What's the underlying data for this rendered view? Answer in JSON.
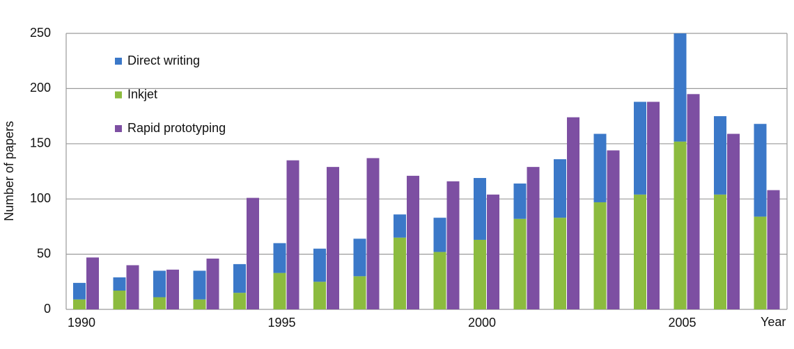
{
  "chart_data": {
    "type": "bar",
    "categories": [
      "1990",
      null,
      null,
      null,
      null,
      "1995",
      null,
      null,
      null,
      null,
      "2000",
      null,
      null,
      null,
      null,
      "2005",
      null,
      null
    ],
    "x_label": "Year",
    "y_label": "Number of papers",
    "series": [
      {
        "name": "Direct writing",
        "color": "#3b78c8",
        "stack": 0,
        "values": [
          15,
          12,
          24,
          26,
          26,
          27,
          30,
          34,
          21,
          31,
          56,
          32,
          53,
          62,
          84,
          98,
          71,
          84
        ]
      },
      {
        "name": "Inkjet",
        "color": "#8cbb3f",
        "stack": 0,
        "values": [
          9,
          17,
          11,
          9,
          15,
          33,
          25,
          30,
          65,
          52,
          63,
          82,
          83,
          97,
          104,
          152,
          104,
          84
        ]
      },
      {
        "name": "Rapid prototyping",
        "color": "#7d4fa2",
        "stack": 1,
        "values": [
          47,
          40,
          36,
          46,
          101,
          135,
          129,
          137,
          121,
          116,
          104,
          129,
          174,
          144,
          188,
          195,
          159,
          108
        ]
      }
    ],
    "ylim": [
      0,
      250
    ],
    "yticks": [
      0,
      50,
      100,
      150,
      200,
      250
    ],
    "grid": true,
    "legend": "upper left"
  }
}
